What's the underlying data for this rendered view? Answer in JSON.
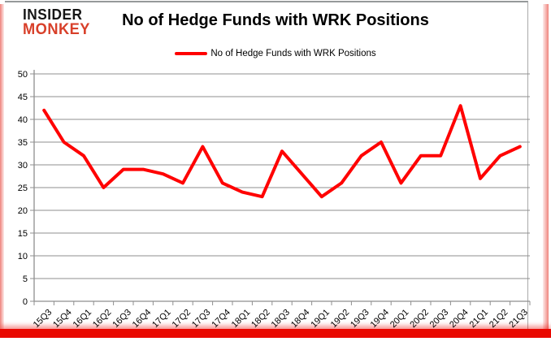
{
  "logo": {
    "line1": "INSIDER",
    "line2": "MONKEY"
  },
  "header": {
    "title": "No of Hedge Funds with WRK Positions"
  },
  "legend": {
    "label": "No of Hedge Funds with WRK Positions"
  },
  "colors": {
    "series_line": "#ff0000",
    "grid": "#8f8f8f",
    "logo_black": "#161616",
    "logo_red": "#d8402a",
    "bottom_bar": "#e90800"
  },
  "chart_data": {
    "type": "line",
    "title": "No of Hedge Funds with WRK Positions",
    "categories": [
      "15Q3",
      "15Q4",
      "16Q1",
      "16Q2",
      "16Q3",
      "16Q4",
      "17Q1",
      "17Q2",
      "17Q3",
      "17Q4",
      "18Q1",
      "18Q2",
      "18Q3",
      "18Q4",
      "19Q1",
      "19Q2",
      "19Q3",
      "19Q4",
      "20Q1",
      "20Q2",
      "20Q3",
      "20Q4",
      "21Q1",
      "21Q2",
      "21Q3"
    ],
    "series": [
      {
        "name": "No of Hedge Funds with WRK Positions",
        "color": "#ff0000",
        "values": [
          42,
          35,
          32,
          25,
          29,
          29,
          28,
          26,
          34,
          26,
          24,
          23,
          33,
          28,
          23,
          26,
          32,
          35,
          26,
          32,
          32,
          43,
          27,
          32,
          34
        ]
      }
    ],
    "xlabel": "",
    "ylabel": "",
    "ylim": [
      0,
      50
    ],
    "ytick_interval": 5,
    "grid": true,
    "legend_position": "top-center"
  }
}
